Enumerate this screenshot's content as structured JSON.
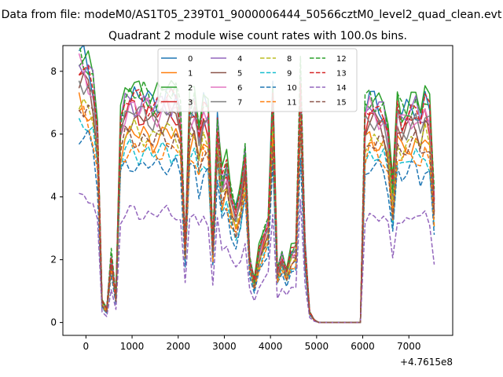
{
  "chart_data": {
    "type": "line",
    "suptitle": "Data from file: modeM0/AS1T05_239T01_9000006444_50566cztM0_level2_quad_clean.evt",
    "title": "Quadrant 2 module wise count rates with 100.0s bins.",
    "xlabel": "",
    "ylabel": "",
    "x_offset_label": "+4.7615e8",
    "xlim": [
      -500,
      7950
    ],
    "ylim": [
      -0.41,
      8.82
    ],
    "xticks": [
      0,
      1000,
      2000,
      3000,
      4000,
      5000,
      6000,
      7000
    ],
    "yticks": [
      0,
      2,
      4,
      6,
      8
    ],
    "grid": false,
    "legend": {
      "placement": "upper-center",
      "columns": 4
    },
    "x": [
      -150,
      -50,
      50,
      150,
      250,
      350,
      450,
      550,
      650,
      750,
      850,
      950,
      1050,
      1150,
      1250,
      1350,
      1450,
      1550,
      1650,
      1750,
      1850,
      1950,
      2050,
      2150,
      2250,
      2350,
      2450,
      2550,
      2650,
      2750,
      2850,
      2950,
      3050,
      3150,
      3250,
      3350,
      3450,
      3550,
      3650,
      3750,
      3850,
      3950,
      4050,
      4150,
      4250,
      4350,
      4450,
      4550,
      4650,
      4750,
      4850,
      4950,
      5050,
      5150,
      5250,
      5350,
      5450,
      5550,
      5650,
      5750,
      5850,
      5950,
      6050,
      6150,
      6250,
      6350,
      6450,
      6550,
      6650,
      6750,
      6850,
      6950,
      7050,
      7150,
      7250,
      7350,
      7450,
      7550
    ],
    "base_shape": [
      1.0,
      0.99,
      0.97,
      0.92,
      0.75,
      0.08,
      0.05,
      0.26,
      0.1,
      0.78,
      0.84,
      0.86,
      0.86,
      0.84,
      0.85,
      0.85,
      0.83,
      0.84,
      0.85,
      0.86,
      0.85,
      0.86,
      0.8,
      0.3,
      0.82,
      0.84,
      0.72,
      0.82,
      0.8,
      0.3,
      0.78,
      0.55,
      0.6,
      0.48,
      0.42,
      0.5,
      0.65,
      0.25,
      0.16,
      0.27,
      0.33,
      0.38,
      0.86,
      0.2,
      0.26,
      0.2,
      0.27,
      0.28,
      0.94,
      0.29,
      0.04,
      0.01,
      0.0,
      0.0,
      0.0,
      0.0,
      0.0,
      0.0,
      0.0,
      0.0,
      0.0,
      0.0,
      0.8,
      0.84,
      0.83,
      0.82,
      0.81,
      0.73,
      0.5,
      0.82,
      0.78,
      0.8,
      0.82,
      0.83,
      0.78,
      0.84,
      0.8,
      0.47
    ],
    "series": [
      {
        "name": "0",
        "color": "#1f77b4",
        "dash": "solid",
        "scale": 8.4
      },
      {
        "name": "1",
        "color": "#ff7f0e",
        "dash": "solid",
        "scale": 7.0
      },
      {
        "name": "2",
        "color": "#2ca02c",
        "dash": "solid",
        "scale": 8.7
      },
      {
        "name": "3",
        "color": "#d62728",
        "dash": "solid",
        "scale": 7.9
      },
      {
        "name": "4",
        "color": "#9467bd",
        "dash": "solid",
        "scale": 8.2
      },
      {
        "name": "5",
        "color": "#8c564b",
        "dash": "solid",
        "scale": 7.6
      },
      {
        "name": "6",
        "color": "#e377c2",
        "dash": "solid",
        "scale": 8.0
      },
      {
        "name": "7",
        "color": "#7f7f7f",
        "dash": "solid",
        "scale": 7.8
      },
      {
        "name": "8",
        "color": "#bcbd22",
        "dash": "dashed",
        "scale": 7.1
      },
      {
        "name": "9",
        "color": "#17becf",
        "dash": "dashed",
        "scale": 6.4
      },
      {
        "name": "10",
        "color": "#1f77b4",
        "dash": "dashed",
        "scale": 5.9
      },
      {
        "name": "11",
        "color": "#ff7f0e",
        "dash": "dashed",
        "scale": 6.5
      },
      {
        "name": "12",
        "color": "#2ca02c",
        "dash": "dashed",
        "scale": 8.5
      },
      {
        "name": "13",
        "color": "#d62728",
        "dash": "dashed",
        "scale": 8.3
      },
      {
        "name": "14",
        "color": "#9467bd",
        "dash": "dashed",
        "scale": 4.1
      },
      {
        "name": "15",
        "color": "#8c564b",
        "dash": "dashed",
        "scale": 6.9
      }
    ]
  }
}
